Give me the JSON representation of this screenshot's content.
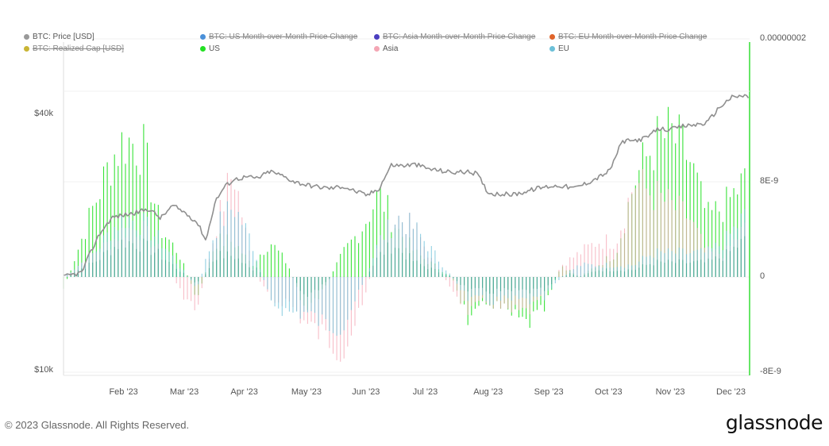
{
  "chart_data": {
    "type": "bar",
    "title": "",
    "legend_placement": "top-left",
    "legend": [
      {
        "label": "BTC: Price [USD]",
        "color": "#999999",
        "enabled": true
      },
      {
        "label": "BTC: US Month-over-Month Price Change",
        "color": "#4a90d9",
        "enabled": false
      },
      {
        "label": "BTC: Asia Month-over-Month Price Change",
        "color": "#4b3fc0",
        "enabled": false
      },
      {
        "label": "BTC: EU Month-over-Month Price Change",
        "color": "#e0642a",
        "enabled": false
      },
      {
        "label": "BTC: Realized Cap [USD]",
        "color": "#c9b535",
        "enabled": false
      },
      {
        "label": "US",
        "color": "#22e022",
        "enabled": true
      },
      {
        "label": "Asia",
        "color": "#f4a6b4",
        "enabled": true
      },
      {
        "label": "EU",
        "color": "#6cc0d8",
        "enabled": true
      }
    ],
    "x_ticks": [
      "Feb '23",
      "Mar '23",
      "Apr '23",
      "May '23",
      "Jun '23",
      "Jul '23",
      "Aug '23",
      "Sep '23",
      "Oct '23",
      "Nov '23",
      "Dec '23"
    ],
    "y_left": {
      "scale": "log",
      "ticks": [
        "$10k",
        "$40k"
      ],
      "range": [
        10000,
        60000
      ],
      "label": ""
    },
    "y_right": {
      "scale": "linear",
      "ticks": [
        "0.00000002",
        "8E-9",
        "0",
        "-8E-9"
      ],
      "range": [
        -8e-09,
        2.4e-08
      ],
      "label": ""
    },
    "x_range": [
      "2023-01-01",
      "2023-12-10"
    ],
    "grid": true,
    "price_series": {
      "name": "BTC: Price [USD]",
      "x_month_index": [
        0.0,
        0.3,
        0.45,
        0.6,
        0.8,
        1.0,
        1.2,
        1.4,
        1.6,
        1.8,
        2.0,
        2.2,
        2.35,
        2.5,
        2.65,
        2.8,
        3.0,
        3.2,
        3.4,
        3.6,
        3.8,
        4.0,
        4.2,
        4.4,
        4.6,
        4.8,
        5.0,
        5.2,
        5.4,
        5.6,
        5.8,
        6.0,
        6.2,
        6.4,
        6.6,
        6.8,
        7.0,
        7.2,
        7.4,
        7.6,
        7.8,
        8.0,
        8.2,
        8.4,
        8.6,
        8.8,
        9.0,
        9.2,
        9.4,
        9.6,
        9.8,
        10.0,
        10.2,
        10.4,
        10.6,
        10.8,
        11.0,
        11.2,
        11.3
      ],
      "values": [
        16600,
        17000,
        19000,
        21000,
        22900,
        23200,
        23500,
        24000,
        22800,
        24400,
        23500,
        22300,
        20200,
        25000,
        27000,
        28100,
        28500,
        28300,
        29400,
        28700,
        27800,
        27300,
        27000,
        26800,
        27100,
        26400,
        25800,
        26800,
        30400,
        30300,
        30500,
        29800,
        29500,
        29200,
        29300,
        29100,
        26100,
        26000,
        25900,
        26300,
        26800,
        27100,
        27200,
        26800,
        27500,
        28400,
        29500,
        34500,
        34700,
        35200,
        37000,
        36800,
        37500,
        37800,
        38200,
        41500,
        43800,
        44200,
        43900
      ]
    },
    "bar_series_note": "stacked month-over-month price change bars (US, Asia, EU), values in right-axis units",
    "bar_series": [
      {
        "name": "US",
        "color": "#22e022",
        "x_month_index": [
          0.0,
          0.5,
          0.8,
          1.0,
          1.3,
          1.6,
          1.9,
          2.2,
          2.5,
          2.8,
          3.1,
          3.4,
          3.7,
          4.0,
          4.3,
          4.6,
          4.9,
          5.2,
          5.5,
          5.8,
          6.1,
          6.4,
          6.7,
          7.0,
          7.3,
          7.6,
          7.9,
          8.2,
          8.5,
          8.8,
          9.1,
          9.4,
          9.7,
          10.0,
          10.3,
          10.6,
          10.9,
          11.2
        ],
        "values": [
          -1e-09,
          6e-09,
          1e-08,
          1.15e-08,
          1.1e-08,
          4e-09,
          2e-09,
          -2e-09,
          3e-09,
          3e-09,
          1e-09,
          3e-09,
          1e-09,
          -3e-09,
          -1e-09,
          2e-09,
          4e-09,
          7e-09,
          4e-09,
          2e-09,
          1e-09,
          0,
          -4e-09,
          -2e-09,
          -3e-09,
          -4e-09,
          -3e-09,
          1e-09,
          0,
          1e-09,
          2e-09,
          8e-09,
          1.1e-08,
          1.2e-08,
          1e-08,
          5e-09,
          6e-09,
          8e-09
        ]
      },
      {
        "name": "Asia",
        "color": "#f4a6b4",
        "x_month_index": [
          0.0,
          0.5,
          0.8,
          1.0,
          1.3,
          1.6,
          1.9,
          2.2,
          2.5,
          2.8,
          3.1,
          3.4,
          3.7,
          4.0,
          4.3,
          4.6,
          4.9,
          5.2,
          5.5,
          5.8,
          6.1,
          6.4,
          6.7,
          7.0,
          7.3,
          7.6,
          7.9,
          8.2,
          8.5,
          8.8,
          9.1,
          9.4,
          9.7,
          10.0,
          10.3,
          10.6,
          10.9,
          11.2
        ],
        "values": [
          0,
          2e-09,
          3e-09,
          4e-09,
          4e-09,
          2e-09,
          -1e-09,
          -3e-09,
          4e-09,
          9e-09,
          1e-09,
          -2e-09,
          -2e-09,
          -4e-09,
          -5e-09,
          -6e-09,
          -3e-09,
          3e-09,
          5e-09,
          4e-09,
          1e-09,
          -1e-09,
          -3e-09,
          -2e-09,
          -3e-09,
          -3e-09,
          -2e-09,
          1e-09,
          2e-09,
          3e-09,
          3e-09,
          8e-09,
          7e-09,
          6e-09,
          5e-09,
          2e-09,
          2e-09,
          4e-09
        ]
      },
      {
        "name": "EU",
        "color": "#6cc0d8",
        "x_month_index": [
          0.0,
          0.5,
          0.8,
          1.0,
          1.3,
          1.6,
          1.9,
          2.2,
          2.5,
          2.8,
          3.1,
          3.4,
          3.7,
          4.0,
          4.3,
          4.6,
          4.9,
          5.2,
          5.5,
          5.8,
          6.1,
          6.4,
          6.7,
          7.0,
          7.3,
          7.6,
          7.9,
          8.2,
          8.5,
          8.8,
          9.1,
          9.4,
          9.7,
          10.0,
          10.3,
          10.6,
          10.9,
          11.2
        ],
        "values": [
          0,
          2e-09,
          4e-09,
          5e-09,
          4.5e-09,
          3e-09,
          1e-09,
          -1e-09,
          4e-09,
          6e-09,
          3e-09,
          -2e-09,
          -3e-09,
          -3e-09,
          -4e-09,
          -4e-09,
          -1e-09,
          3e-09,
          5e-09,
          4e-09,
          2e-09,
          0,
          -2e-09,
          -2e-09,
          -2e-09,
          -2e-09,
          -2e-09,
          0,
          1e-09,
          1e-09,
          1e-09,
          1e-09,
          2e-09,
          2e-09,
          2e-09,
          2e-09,
          3e-09,
          5e-09
        ]
      }
    ]
  },
  "footer": {
    "copyright": "© 2023 Glassnode. All Rights Reserved.",
    "brand": "glassnode"
  }
}
